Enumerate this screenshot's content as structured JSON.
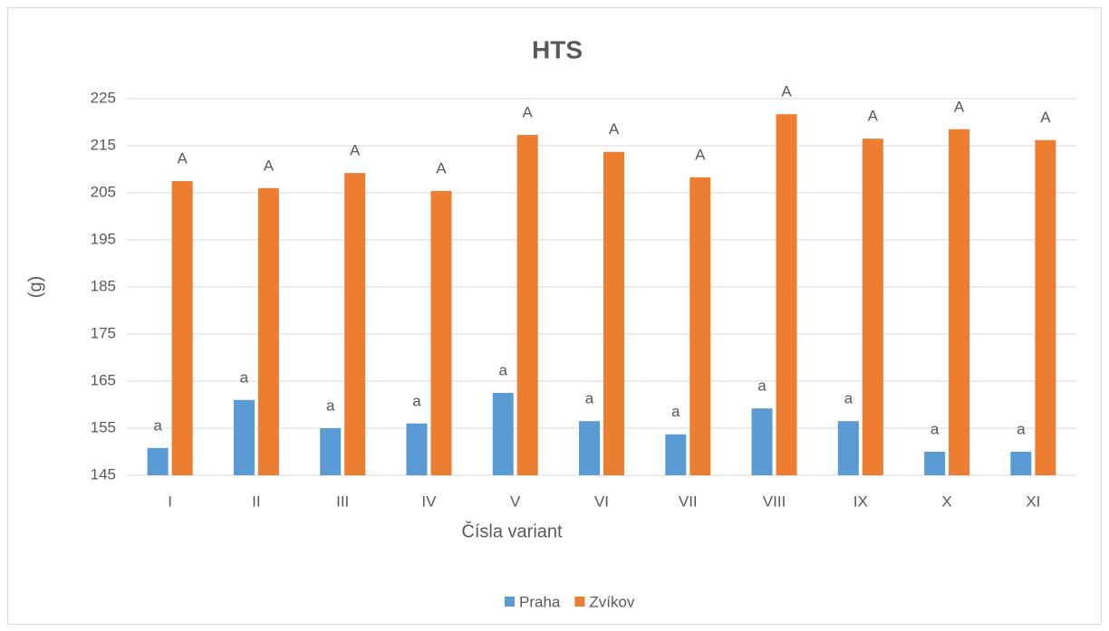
{
  "chart_data": {
    "type": "bar",
    "title": "HTS",
    "x_label": "Čísla variant",
    "y_label": "(g)",
    "categories": [
      "I",
      "II",
      "III",
      "IV",
      "V",
      "VI",
      "VII",
      "VIII",
      "IX",
      "X",
      "XI"
    ],
    "series": [
      {
        "name": "Praha",
        "color": "#5b9bd5",
        "values": [
          150.8,
          161,
          155,
          156,
          162.5,
          156.5,
          153.7,
          159.2,
          156.5,
          150,
          150
        ],
        "value_labels": [
          "a",
          "a",
          "a",
          "a",
          "a",
          "a",
          "a",
          "a",
          "a",
          "a",
          "a"
        ]
      },
      {
        "name": "Zvíkov",
        "color": "#ed7d31",
        "values": [
          207.5,
          206,
          209.2,
          205.4,
          217.3,
          213.7,
          208.3,
          221.7,
          216.5,
          218.5,
          216.2
        ],
        "value_labels": [
          "A",
          "A",
          "A",
          "A",
          "A",
          "A",
          "A",
          "A",
          "A",
          "A",
          "A"
        ]
      }
    ],
    "ylim": [
      145,
      225
    ],
    "yticks": [
      145,
      155,
      165,
      175,
      185,
      195,
      205,
      215,
      225
    ],
    "grid": true,
    "legend": "bottom"
  }
}
